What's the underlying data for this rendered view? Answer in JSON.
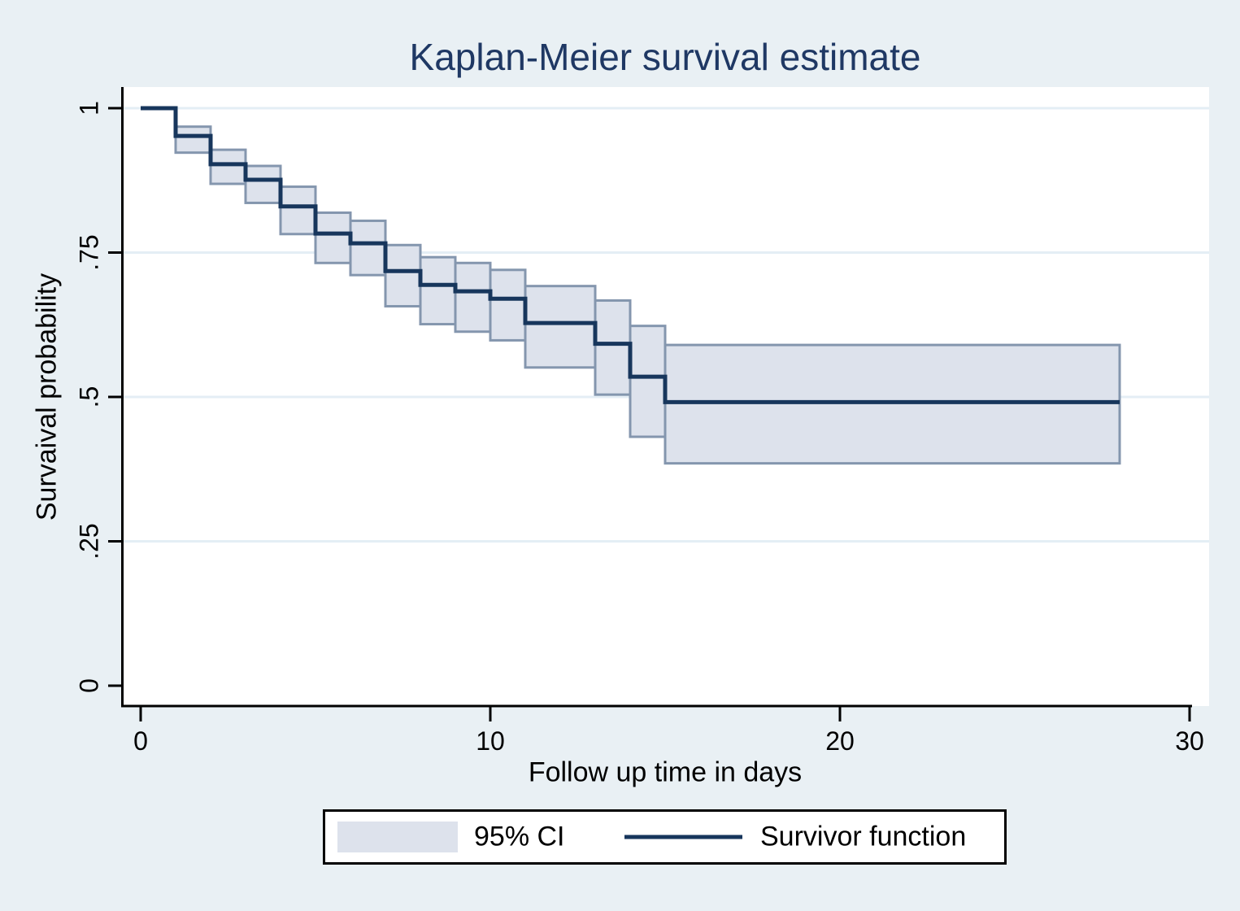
{
  "title": "Kaplan-Meier survival estimate",
  "colors": {
    "page_bg": "#e9f0f4",
    "plot_bg": "#ffffff",
    "grid": "#e4eef5",
    "line": "#17365c",
    "band_fill": "#dde2ec",
    "band_border": "#8496ae",
    "title_text": "#1f3864",
    "axis": "#000000",
    "text": "#000000"
  },
  "legend": {
    "items": [
      {
        "label": "95% CI",
        "swatch": "area"
      },
      {
        "label": "Survivor function",
        "swatch": "line"
      }
    ]
  },
  "chart_data": {
    "type": "line",
    "variant": "kaplan-meier-step-with-ci-band",
    "title": "Kaplan-Meier survival estimate",
    "xlabel": "Follow up time in days",
    "ylabel": "Survaival probability",
    "xlim": [
      0,
      30
    ],
    "ylim": [
      0,
      1
    ],
    "xticks": [
      0,
      10,
      20,
      30
    ],
    "yticks": [
      0,
      0.25,
      0.5,
      0.75,
      1
    ],
    "ytick_labels": [
      "0",
      ".25",
      ".5",
      ".75",
      "1"
    ],
    "gridlines_y": [
      0.25,
      0.5,
      0.75,
      1
    ],
    "grid": "horizontal only",
    "legend_position": "bottom center boxed",
    "follow_up_end": 28,
    "series": [
      {
        "name": "Survivor function",
        "points": [
          {
            "t": 0,
            "s": 1.0,
            "lo": null,
            "hi": null
          },
          {
            "t": 1,
            "s": 0.952,
            "lo": 0.923,
            "hi": 0.968
          },
          {
            "t": 2,
            "s": 0.903,
            "lo": 0.869,
            "hi": 0.928
          },
          {
            "t": 3,
            "s": 0.876,
            "lo": 0.836,
            "hi": 0.9
          },
          {
            "t": 4,
            "s": 0.83,
            "lo": 0.782,
            "hi": 0.864
          },
          {
            "t": 5,
            "s": 0.783,
            "lo": 0.732,
            "hi": 0.819
          },
          {
            "t": 6,
            "s": 0.766,
            "lo": 0.711,
            "hi": 0.805
          },
          {
            "t": 7,
            "s": 0.718,
            "lo": 0.657,
            "hi": 0.763
          },
          {
            "t": 8,
            "s": 0.694,
            "lo": 0.626,
            "hi": 0.742
          },
          {
            "t": 9,
            "s": 0.683,
            "lo": 0.613,
            "hi": 0.732
          },
          {
            "t": 10,
            "s": 0.67,
            "lo": 0.598,
            "hi": 0.72
          },
          {
            "t": 11,
            "s": 0.628,
            "lo": 0.551,
            "hi": 0.692
          },
          {
            "t": 13,
            "s": 0.592,
            "lo": 0.504,
            "hi": 0.667
          },
          {
            "t": 14,
            "s": 0.535,
            "lo": 0.431,
            "hi": 0.623
          },
          {
            "t": 15,
            "s": 0.491,
            "lo": 0.385,
            "hi": 0.59
          }
        ]
      }
    ],
    "ci_label": "95% CI"
  }
}
